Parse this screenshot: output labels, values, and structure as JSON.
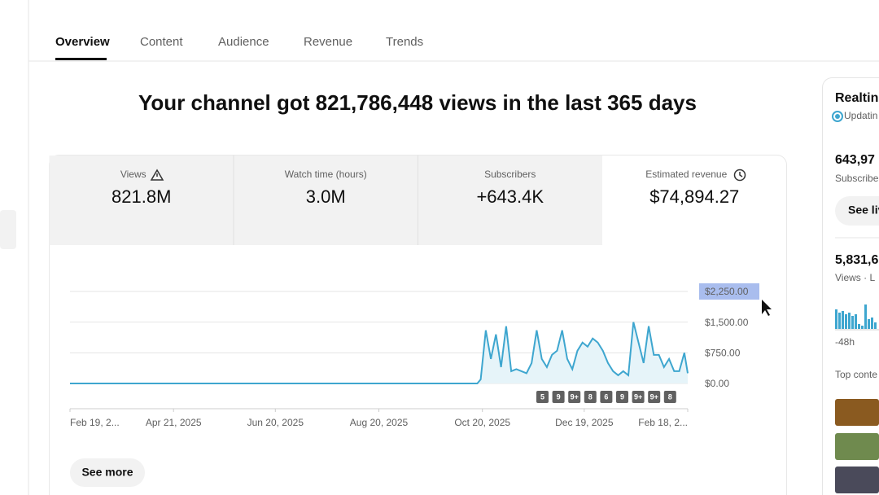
{
  "tabs": [
    "Overview",
    "Content",
    "Audience",
    "Revenue",
    "Trends"
  ],
  "headline": "Your channel got 821,786,448 views in the last 365 days",
  "metrics": [
    {
      "label": "Views",
      "value": "821.8M"
    },
    {
      "label": "Watch time (hours)",
      "value": "3.0M"
    },
    {
      "label": "Subscribers",
      "value": "+643.4K"
    },
    {
      "label": "Estimated revenue",
      "value": "$74,894.27"
    }
  ],
  "chart_data": {
    "type": "line",
    "color": "#3ea6cf",
    "x": [
      0,
      240,
      242,
      245,
      248,
      251,
      254,
      257,
      260,
      263,
      266,
      269,
      272,
      275,
      278,
      281,
      284,
      287,
      290,
      293,
      296,
      299,
      302,
      305,
      308,
      311,
      314,
      317,
      320,
      323,
      326,
      329,
      332,
      335,
      338,
      341,
      344,
      347,
      350,
      353,
      356,
      359,
      362,
      364
    ],
    "values": [
      0,
      0,
      100,
      1300,
      600,
      1200,
      400,
      1400,
      300,
      350,
      300,
      250,
      500,
      1300,
      600,
      400,
      700,
      800,
      1300,
      600,
      350,
      800,
      1000,
      900,
      1100,
      1000,
      800,
      500,
      300,
      200,
      300,
      200,
      1500,
      1000,
      500,
      1400,
      700,
      700,
      400,
      600,
      300,
      300,
      750,
      250
    ],
    "xlim": [
      0,
      364
    ],
    "xticks": [
      {
        "value": 0,
        "label": "Feb 19, 2..."
      },
      {
        "value": 61,
        "label": "Apr 21, 2025"
      },
      {
        "value": 121,
        "label": "Jun 20, 2025"
      },
      {
        "value": 182,
        "label": "Aug 20, 2025"
      },
      {
        "value": 243,
        "label": "Oct 20, 2025"
      },
      {
        "value": 303,
        "label": "Dec 19, 2025"
      },
      {
        "value": 364,
        "label": "Feb 18, 2..."
      }
    ],
    "ylim": [
      0,
      2250
    ],
    "yticks": [
      {
        "value": 0,
        "label": "$0.00"
      },
      {
        "value": 750,
        "label": "$750.00"
      },
      {
        "value": 1500,
        "label": "$1,500.00"
      },
      {
        "value": 2250,
        "label": "$2,250.00"
      }
    ],
    "grid": true,
    "badges": [
      "5",
      "9",
      "9+",
      "8",
      "6",
      "9",
      "9+",
      "9+",
      "8"
    ]
  },
  "see_more": "See more",
  "realtime": {
    "title": "Realtin",
    "status": "Updatin",
    "subs": "643,97",
    "subs_label": "Subscribe",
    "button": "See liv",
    "views": "5,831,6",
    "views_label": "Views · L",
    "axis_label": "-48h",
    "top": "Top conte",
    "bars": [
      24,
      20,
      22,
      18,
      20,
      16,
      18,
      6,
      4,
      30,
      12,
      14,
      8
    ]
  }
}
